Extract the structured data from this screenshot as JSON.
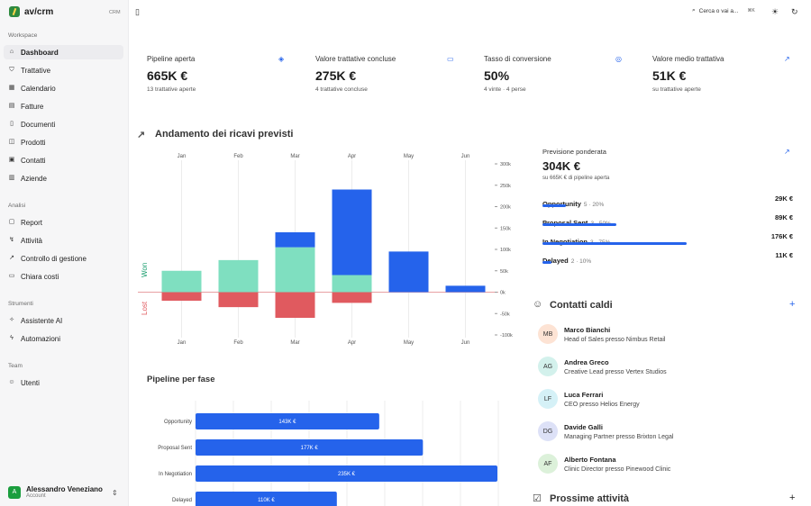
{
  "sidebar": {
    "brand": "av/crm",
    "tag": "CRM",
    "sections": [
      "Workspace",
      "Analisi",
      "Strumenti",
      "Team"
    ],
    "items": [
      {
        "label": "Dashboard"
      },
      {
        "label": "Trattative"
      },
      {
        "label": "Calendario"
      },
      {
        "label": "Fatture"
      },
      {
        "label": "Documenti"
      },
      {
        "label": "Prodotti"
      },
      {
        "label": "Contatti"
      },
      {
        "label": "Aziende"
      },
      {
        "label": "Report"
      },
      {
        "label": "Attività"
      },
      {
        "label": "Controllo di gestione"
      },
      {
        "label": "Chiara costi"
      },
      {
        "label": "Assistente AI"
      },
      {
        "label": "Automazioni"
      },
      {
        "label": "Utenti"
      }
    ],
    "user": {
      "initial": "A",
      "name": "Alessandro Veneziano",
      "role": "Account"
    }
  },
  "topbar": {
    "search_placeholder": "Cerca o vai a...",
    "shortcut": "⌘K"
  },
  "kpis": [
    {
      "title": "Pipeline aperta",
      "value": "665K €",
      "sub": "13 trattative aperte",
      "icon": "layers-icon"
    },
    {
      "title": "Valore trattative concluse",
      "value": "275K €",
      "sub": "4 trattative concluse",
      "icon": "cash-icon"
    },
    {
      "title": "Tasso di conversione",
      "value": "50%",
      "sub": "4 vinte · 4 perse",
      "icon": "target-icon"
    },
    {
      "title": "Valore medio trattativa",
      "value": "51K €",
      "sub": "su trattative aperte",
      "icon": "trend-up-icon"
    }
  ],
  "revenue_section": {
    "title": "Andamento dei ricavi previsti",
    "won_label": "Won",
    "lost_label": "Lost"
  },
  "pipeline_section": {
    "title": "Pipeline per fase"
  },
  "forecast": {
    "title": "Previsione ponderata",
    "value": "304K €",
    "sub": "su 665K € di pipeline aperta",
    "rows": [
      {
        "label": "Opportunity",
        "meta": "5 · 20%",
        "value": "29K €",
        "fraction": 0.16
      },
      {
        "label": "Proposal Sent",
        "meta": "3 · 50%",
        "value": "89K €",
        "fraction": 0.51
      },
      {
        "label": "In Negotiation",
        "meta": "3 · 75%",
        "value": "176K €",
        "fraction": 1.0
      },
      {
        "label": "Delayed",
        "meta": "2 · 10%",
        "value": "11K €",
        "fraction": 0.06
      }
    ]
  },
  "contacts": {
    "title": "Contatti caldi",
    "items": [
      {
        "initials": "MB",
        "name": "Marco Bianchi",
        "role": "Head of Sales presso Nimbus Retail",
        "color": "#fde3d4"
      },
      {
        "initials": "AG",
        "name": "Andrea Greco",
        "role": "Creative Lead presso Vertex Studios",
        "color": "#d3f1ec"
      },
      {
        "initials": "LF",
        "name": "Luca Ferrari",
        "role": "CEO presso Helios Energy",
        "color": "#d5f1f7"
      },
      {
        "initials": "DG",
        "name": "Davide Galli",
        "role": "Managing Partner presso Brixton Legal",
        "color": "#dde1f7"
      },
      {
        "initials": "AF",
        "name": "Alberto Fontana",
        "role": "Clinic Director presso Pinewood Clinic",
        "color": "#dcf1da"
      }
    ]
  },
  "activities": {
    "title": "Prossime attività"
  },
  "chart_data": [
    {
      "type": "bar",
      "categories": [
        "Jan",
        "Feb",
        "Mar",
        "Apr",
        "May",
        "Jun"
      ],
      "series": [
        {
          "name": "Won",
          "values": [
            50,
            75,
            105,
            40,
            0,
            0
          ],
          "color": "#7fdfc0"
        },
        {
          "name": "",
          "values": [
            0,
            0,
            35,
            200,
            95,
            15
          ],
          "color": "#2563eb"
        },
        {
          "name": "Lost",
          "values": [
            -20,
            -35,
            -60,
            -25,
            0,
            0
          ],
          "color": "#e05a5f"
        }
      ],
      "y_ticks": [
        "300k",
        "250k",
        "200k",
        "150k",
        "100k",
        "50k",
        "0k",
        "-50k",
        "-100k"
      ],
      "ylim": [
        -100,
        300
      ]
    },
    {
      "type": "bar",
      "orientation": "horizontal",
      "categories": [
        "Opportunity",
        "Proposal Sent",
        "In Negotiation",
        "Delayed"
      ],
      "values": [
        143,
        177,
        235,
        110
      ],
      "labels": [
        "143K €",
        "177K €",
        "235K €",
        "110K €"
      ],
      "color": "#2563eb"
    }
  ]
}
